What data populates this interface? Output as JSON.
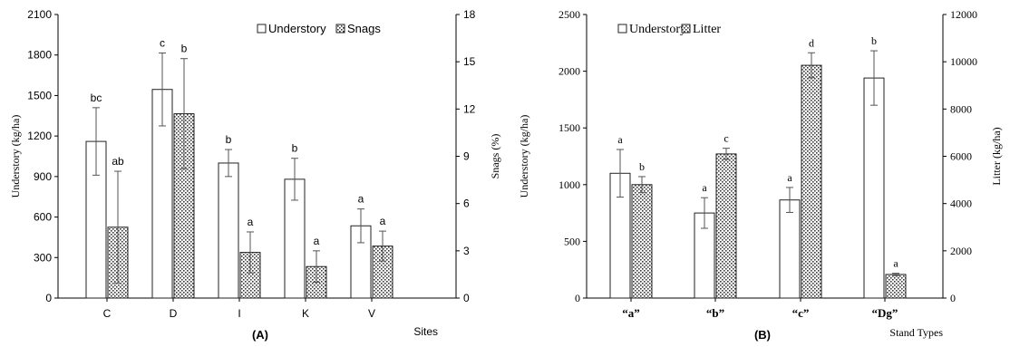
{
  "chart_data": [
    {
      "panel_label": "(A)",
      "type": "bar",
      "xlabel": "Sites",
      "ylabel_left": "Understory (kg/ha)",
      "ylabel_right": "Snags (%)",
      "ylim_left": [
        0,
        2100
      ],
      "ylim_right": [
        0,
        18
      ],
      "yticks_left": [
        "0",
        "300",
        "600",
        "900",
        "1200",
        "1500",
        "1800",
        "2100"
      ],
      "yticks_right": [
        "0",
        "3",
        "6",
        "9",
        "12",
        "15",
        "18"
      ],
      "legend_position": "top-right",
      "categories": [
        "C",
        "D",
        "I",
        "K",
        "V"
      ],
      "series": [
        {
          "name": "Understory",
          "axis": "left",
          "pattern": "white",
          "values": [
            1160,
            1545,
            1000,
            880,
            535
          ],
          "errors": [
            250,
            270,
            100,
            155,
            125
          ],
          "letters": [
            "bc",
            "c",
            "b",
            "b",
            "a"
          ]
        },
        {
          "name": "Snags",
          "axis": "right",
          "pattern": "dotted",
          "values": [
            4.5,
            11.7,
            2.9,
            2.0,
            3.3
          ],
          "errors": [
            3.55,
            3.5,
            1.3,
            1.0,
            0.95
          ],
          "letters": [
            "ab",
            "b",
            "a",
            "a",
            "a"
          ]
        }
      ]
    },
    {
      "panel_label": "(B)",
      "type": "bar",
      "xlabel": "Stand Types",
      "ylabel_left": "Understory (kg/ha)",
      "ylabel_right": "Litter (kg/ha)",
      "ylim_left": [
        0,
        2500
      ],
      "ylim_right": [
        0,
        12000
      ],
      "yticks_left": [
        "0",
        "500",
        "1000",
        "1500",
        "2000",
        "2500"
      ],
      "yticks_right": [
        "0",
        "2000",
        "4000",
        "6000",
        "8000",
        "10000",
        "12000"
      ],
      "legend_position": "top-left",
      "categories": [
        "“a”",
        "“b”",
        "“c”",
        "“Dg”"
      ],
      "series": [
        {
          "name": "Understory",
          "axis": "left",
          "pattern": "white",
          "values": [
            1100,
            750,
            865,
            1940
          ],
          "errors": [
            210,
            135,
            110,
            240
          ],
          "letters": [
            "a",
            "a",
            "a",
            "b"
          ]
        },
        {
          "name": "Litter",
          "axis": "right",
          "pattern": "dotted",
          "values": [
            4800,
            6100,
            9850,
            1000
          ],
          "errors": [
            340,
            240,
            530,
            50
          ],
          "letters": [
            "b",
            "c",
            "d",
            "a"
          ]
        }
      ]
    }
  ]
}
